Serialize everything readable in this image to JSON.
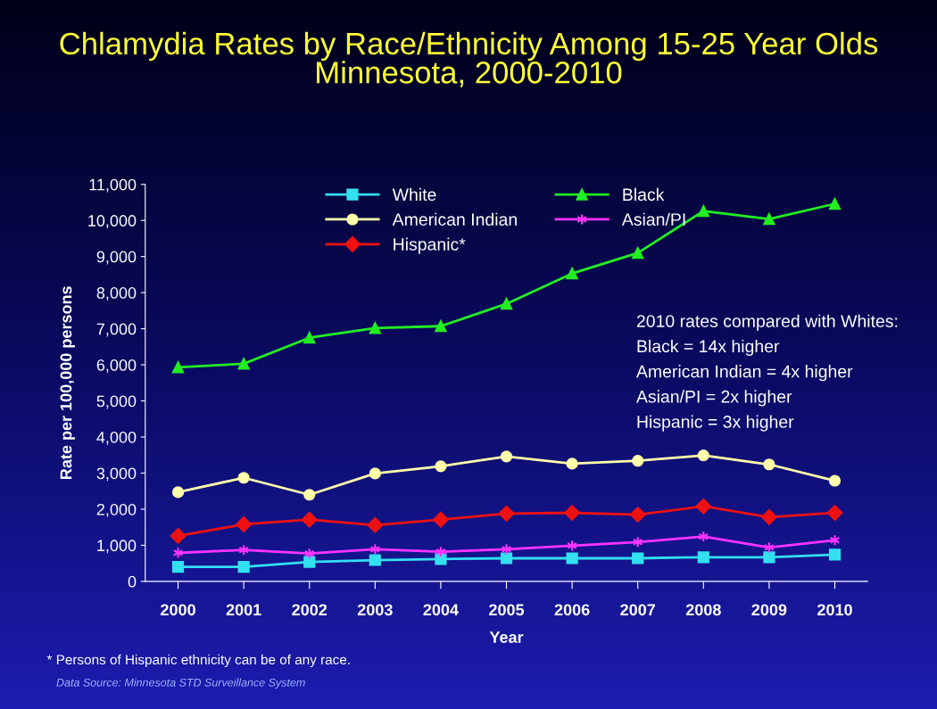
{
  "chart_data": {
    "type": "line",
    "title": "Chlamydia Rates by Race/Ethnicity Among 15-25 Year Olds\nMinnesota, 2000-2010",
    "xlabel": "Year",
    "ylabel": "Rate per 100,000 persons",
    "categories": [
      "2000",
      "2001",
      "2002",
      "2003",
      "2004",
      "2005",
      "2006",
      "2007",
      "2008",
      "2009",
      "2010"
    ],
    "series": [
      {
        "name": "White",
        "color": "#33e0f0",
        "marker": "square",
        "values": [
          400,
          400,
          540,
          590,
          620,
          640,
          640,
          640,
          670,
          670,
          740
        ]
      },
      {
        "name": "Black",
        "color": "#22ee22",
        "marker": "triangle",
        "values": [
          5930,
          6030,
          6750,
          7020,
          7070,
          7690,
          8530,
          9100,
          10260,
          10040,
          10460
        ]
      },
      {
        "name": "American Indian",
        "color": "#ffffaa",
        "marker": "circle",
        "values": [
          2470,
          2870,
          2400,
          2990,
          3190,
          3460,
          3260,
          3340,
          3490,
          3240,
          2790
        ]
      },
      {
        "name": "Asian/PI",
        "color": "#ff33ff",
        "marker": "cross",
        "values": [
          790,
          870,
          770,
          890,
          820,
          890,
          990,
          1090,
          1240,
          940,
          1140
        ]
      },
      {
        "name": "Hispanic*",
        "color": "#ee1111",
        "marker": "diamond",
        "values": [
          1260,
          1580,
          1710,
          1560,
          1710,
          1880,
          1900,
          1850,
          2080,
          1780,
          1900
        ]
      }
    ],
    "ylim": [
      0,
      11000
    ],
    "yticks": [
      {
        "value": 0,
        "label": "0"
      },
      {
        "value": 1000,
        "label": "1,000"
      },
      {
        "value": 2000,
        "label": "2,000"
      },
      {
        "value": 3000,
        "label": "3,000"
      },
      {
        "value": 4000,
        "label": "4,000"
      },
      {
        "value": 5000,
        "label": "5,000"
      },
      {
        "value": 6000,
        "label": "6,000"
      },
      {
        "value": 7000,
        "label": "7,000"
      },
      {
        "value": 8000,
        "label": "8,000"
      },
      {
        "value": 9000,
        "label": "9,000"
      },
      {
        "value": 10000,
        "label": "10,000"
      },
      {
        "value": 11000,
        "label": "11,000"
      }
    ],
    "grid": false,
    "legend": "top",
    "line_style": "solid",
    "annotations": [
      "2010 rates compared with Whites:",
      "Black = 14x higher",
      "American Indian = 4x higher",
      "Asian/PI = 2x higher",
      "Hispanic = 3x higher",
      "* Persons of Hispanic ethnicity can be of any race.",
      "Data Source: Minnesota STD Surveillance System"
    ]
  }
}
